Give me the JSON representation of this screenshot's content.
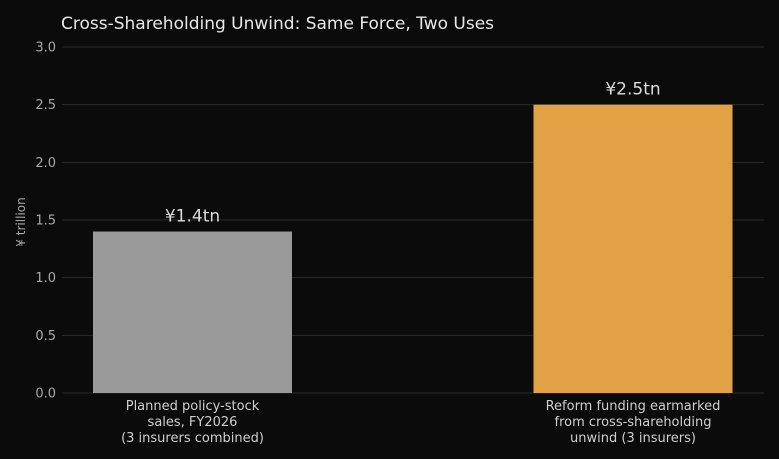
{
  "chart_data": {
    "type": "bar",
    "title": "Cross-Shareholding Unwind: Same Force, Two Uses",
    "xlabel": "",
    "ylabel": "¥ trillion",
    "ylim": [
      0,
      3.0
    ],
    "yticks": [
      "0.0",
      "0.5",
      "1.0",
      "1.5",
      "2.0",
      "2.5",
      "3.0"
    ],
    "grid": true,
    "categories": [
      [
        "Planned policy-stock",
        "sales, FY2026",
        "(3 insurers combined)"
      ],
      [
        "Reform funding earmarked",
        "from cross-shareholding",
        "unwind (3 insurers)"
      ]
    ],
    "values": [
      1.4,
      2.5
    ],
    "data_labels": [
      "¥1.4tn",
      "¥2.5tn"
    ],
    "colors": [
      "#9a9a9a",
      "#e1a144"
    ]
  }
}
